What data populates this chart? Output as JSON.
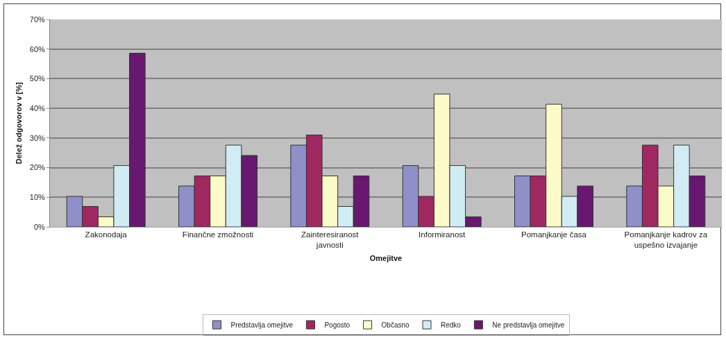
{
  "chart_data": {
    "type": "bar",
    "xlabel": "Omejitve",
    "ylabel": "Delež odgovorov v [%]",
    "categories": [
      "Zakonodaja",
      "Finančne zmožnosti",
      "Zainteresiranost javnosti",
      "Informiranost",
      "Pomanjkanje časa",
      "Pomanjkanje kadrov za uspešno izvajanje"
    ],
    "series": [
      {
        "name": "Predstavlja omejitve",
        "color": "#9090c8",
        "values": [
          10.3,
          13.8,
          27.6,
          20.7,
          17.2,
          13.8
        ]
      },
      {
        "name": "Pogosto",
        "color": "#a02860",
        "values": [
          6.9,
          17.2,
          31.0,
          10.3,
          17.2,
          27.6
        ]
      },
      {
        "name": "Občasno",
        "color": "#fcfac8",
        "values": [
          3.4,
          17.2,
          17.2,
          44.8,
          41.4,
          13.8
        ]
      },
      {
        "name": "Redko",
        "color": "#d0ecf4",
        "values": [
          20.7,
          27.6,
          6.9,
          20.7,
          10.3,
          27.6
        ]
      },
      {
        "name": "Ne predstavlja omejitve",
        "color": "#681870",
        "values": [
          58.6,
          24.1,
          17.2,
          3.4,
          13.8,
          17.2
        ]
      }
    ],
    "ylim": [
      0,
      70
    ],
    "yticks": [
      {
        "value": 0,
        "label": "0%"
      },
      {
        "value": 10,
        "label": "10%"
      },
      {
        "value": 20,
        "label": "20%"
      },
      {
        "value": 30,
        "label": "30%"
      },
      {
        "value": 40,
        "label": "40%"
      },
      {
        "value": 50,
        "label": "50%"
      },
      {
        "value": 60,
        "label": "60%"
      },
      {
        "value": 70,
        "label": "70%"
      }
    ],
    "grid": "y",
    "legend": "bottom"
  }
}
